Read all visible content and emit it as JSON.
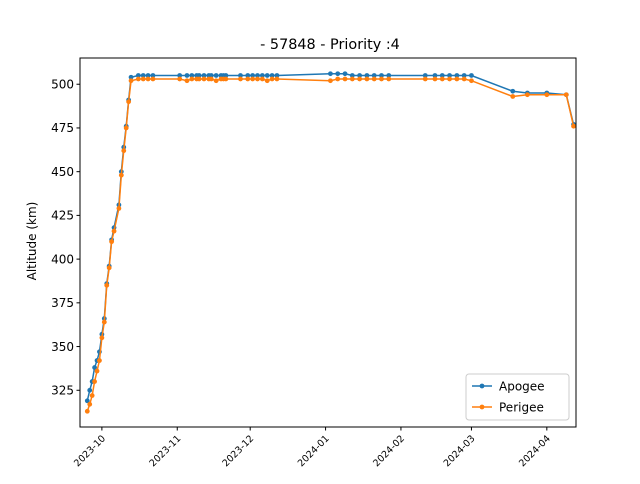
{
  "chart_data": {
    "type": "line",
    "title": "- 57848 - Priority :4",
    "xlabel": "",
    "ylabel": "Altitude (km)",
    "x_axis_type": "date",
    "xlim": [
      "2023-09-22",
      "2024-04-13"
    ],
    "ylim": [
      304,
      515
    ],
    "x_ticks": [
      "2023-10-01",
      "2023-11-01",
      "2023-12-01",
      "2024-01-01",
      "2024-02-01",
      "2024-03-01",
      "2024-04-01"
    ],
    "x_tick_labels": [
      "2023-10",
      "2023-11",
      "2023-12",
      "2024-01",
      "2024-02",
      "2024-03",
      "2024-04"
    ],
    "y_ticks": [
      325,
      350,
      375,
      400,
      425,
      450,
      475,
      500
    ],
    "y_tick_labels": [
      "325",
      "350",
      "375",
      "400",
      "425",
      "450",
      "475",
      "500"
    ],
    "grid": false,
    "legend_position": "bottom-right",
    "series": [
      {
        "name": "Apogee",
        "color": "#1f77b4",
        "marker": "circle",
        "x": [
          "2023-09-25",
          "2023-09-26",
          "2023-09-27",
          "2023-09-28",
          "2023-09-29",
          "2023-09-30",
          "2023-10-01",
          "2023-10-02",
          "2023-10-03",
          "2023-10-04",
          "2023-10-05",
          "2023-10-06",
          "2023-10-08",
          "2023-10-09",
          "2023-10-10",
          "2023-10-11",
          "2023-10-12",
          "2023-10-13",
          "2023-10-16",
          "2023-10-18",
          "2023-10-20",
          "2023-10-22",
          "2023-11-02",
          "2023-11-05",
          "2023-11-07",
          "2023-11-09",
          "2023-11-10",
          "2023-11-12",
          "2023-11-14",
          "2023-11-15",
          "2023-11-17",
          "2023-11-19",
          "2023-11-20",
          "2023-11-21",
          "2023-11-27",
          "2023-11-30",
          "2023-12-02",
          "2023-12-04",
          "2023-12-06",
          "2023-12-08",
          "2023-12-10",
          "2023-12-12",
          "2024-01-03",
          "2024-01-06",
          "2024-01-09",
          "2024-01-12",
          "2024-01-15",
          "2024-01-18",
          "2024-01-21",
          "2024-01-24",
          "2024-01-27",
          "2024-02-11",
          "2024-02-15",
          "2024-02-18",
          "2024-02-21",
          "2024-02-24",
          "2024-02-27",
          "2024-03-01",
          "2024-03-18",
          "2024-03-24",
          "2024-04-01",
          "2024-04-09",
          "2024-04-12"
        ],
        "values": [
          319,
          325,
          330,
          338,
          342,
          347,
          357,
          366,
          386,
          396,
          411,
          418,
          431,
          450,
          464,
          476,
          491,
          504,
          505,
          505,
          505,
          505,
          505,
          505,
          505,
          505,
          505,
          505,
          505,
          505,
          505,
          505,
          505,
          505,
          505,
          505,
          505,
          505,
          505,
          505,
          505,
          505,
          506,
          506,
          506,
          505,
          505,
          505,
          505,
          505,
          505,
          505,
          505,
          505,
          505,
          505,
          505,
          505,
          496,
          495,
          495,
          494,
          477
        ]
      },
      {
        "name": "Perigee",
        "color": "#ff7f0e",
        "marker": "circle",
        "x": [
          "2023-09-25",
          "2023-09-26",
          "2023-09-27",
          "2023-09-28",
          "2023-09-29",
          "2023-09-30",
          "2023-10-01",
          "2023-10-02",
          "2023-10-03",
          "2023-10-04",
          "2023-10-05",
          "2023-10-06",
          "2023-10-08",
          "2023-10-09",
          "2023-10-10",
          "2023-10-11",
          "2023-10-12",
          "2023-10-13",
          "2023-10-16",
          "2023-10-18",
          "2023-10-20",
          "2023-10-22",
          "2023-11-02",
          "2023-11-05",
          "2023-11-07",
          "2023-11-09",
          "2023-11-10",
          "2023-11-12",
          "2023-11-14",
          "2023-11-15",
          "2023-11-17",
          "2023-11-19",
          "2023-11-20",
          "2023-11-21",
          "2023-11-27",
          "2023-11-30",
          "2023-12-02",
          "2023-12-04",
          "2023-12-06",
          "2023-12-08",
          "2023-12-10",
          "2023-12-12",
          "2024-01-03",
          "2024-01-06",
          "2024-01-09",
          "2024-01-12",
          "2024-01-15",
          "2024-01-18",
          "2024-01-21",
          "2024-01-24",
          "2024-01-27",
          "2024-02-11",
          "2024-02-15",
          "2024-02-18",
          "2024-02-21",
          "2024-02-24",
          "2024-02-27",
          "2024-03-01",
          "2024-03-18",
          "2024-03-24",
          "2024-04-01",
          "2024-04-09",
          "2024-04-12"
        ],
        "values": [
          313,
          317,
          322,
          330,
          336,
          342,
          355,
          364,
          385,
          395,
          410,
          416,
          429,
          448,
          462,
          475,
          490,
          502,
          503,
          503,
          503,
          503,
          503,
          502,
          503,
          503,
          503,
          503,
          503,
          503,
          502,
          503,
          503,
          503,
          503,
          503,
          503,
          503,
          503,
          502,
          503,
          503,
          502,
          503,
          503,
          503,
          503,
          503,
          503,
          503,
          503,
          503,
          503,
          503,
          503,
          503,
          503,
          502,
          493,
          494,
          494,
          494,
          476
        ]
      }
    ]
  }
}
